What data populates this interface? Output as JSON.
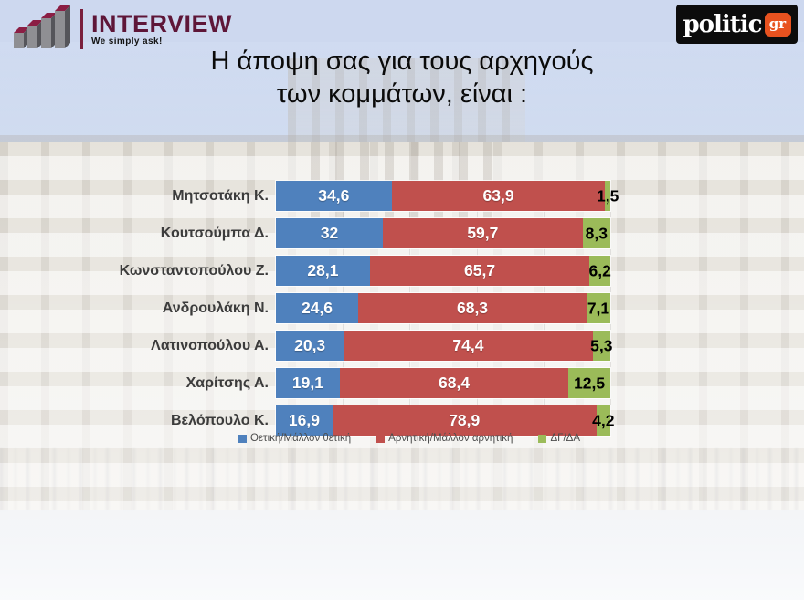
{
  "header": {
    "interview_logo": {
      "name": "INTERVIEW",
      "tagline": "We simply ask!",
      "brand_color": "#5e1638"
    },
    "politic_logo": {
      "name": "politic",
      "tld": "gr",
      "bg_color": "#0c0c0c",
      "accent_color": "#e8521f"
    }
  },
  "title": {
    "line1": "Η άποψη σας για τους αρχηγούς",
    "line2": "των κομμάτων,  είναι :"
  },
  "chart_data": {
    "type": "bar",
    "orientation": "horizontal",
    "stacked": true,
    "title": "Η άποψη σας για τους αρχηγούς των κομμάτων, είναι :",
    "categories": [
      "Μητσοτάκη Κ.",
      "Κουτσούμπα Δ.",
      "Κωνσταντοπούλου Ζ.",
      "Ανδρουλάκη Ν.",
      "Λατινοπούλου Α.",
      "Χαρίτσης Α.",
      "Βελόπουλο Κ."
    ],
    "series": [
      {
        "key": "positive",
        "name": "Θετική/Μάλλον θετική",
        "color": "#4f81bd",
        "values": [
          34.6,
          32,
          28.1,
          24.6,
          20.3,
          19.1,
          16.9
        ],
        "labels": [
          "34,6",
          "32",
          "28,1",
          "24,6",
          "20,3",
          "19,1",
          "16,9"
        ]
      },
      {
        "key": "negative",
        "name": "Αρνητική/Μάλλον αρνητική",
        "color": "#c0504d",
        "values": [
          63.9,
          59.7,
          65.7,
          68.3,
          74.4,
          68.4,
          78.9
        ],
        "labels": [
          "63,9",
          "59,7",
          "65,7",
          "68,3",
          "74,4",
          "68,4",
          "78,9"
        ]
      },
      {
        "key": "dk-na",
        "name": "ΔΓ/ΔΑ",
        "color": "#9bbb59",
        "values": [
          1.5,
          8.3,
          6.2,
          7.1,
          5.3,
          12.5,
          4.2
        ],
        "labels": [
          "1,5",
          "8,3",
          "6,2",
          "7,1",
          "5,3",
          "12,5",
          "4,2"
        ]
      }
    ],
    "xlim": [
      0,
      100
    ],
    "grid": {
      "vertical_interval_pct": 20,
      "visible": true
    },
    "legend_position": "bottom",
    "value_label_decimal_separator": ","
  }
}
